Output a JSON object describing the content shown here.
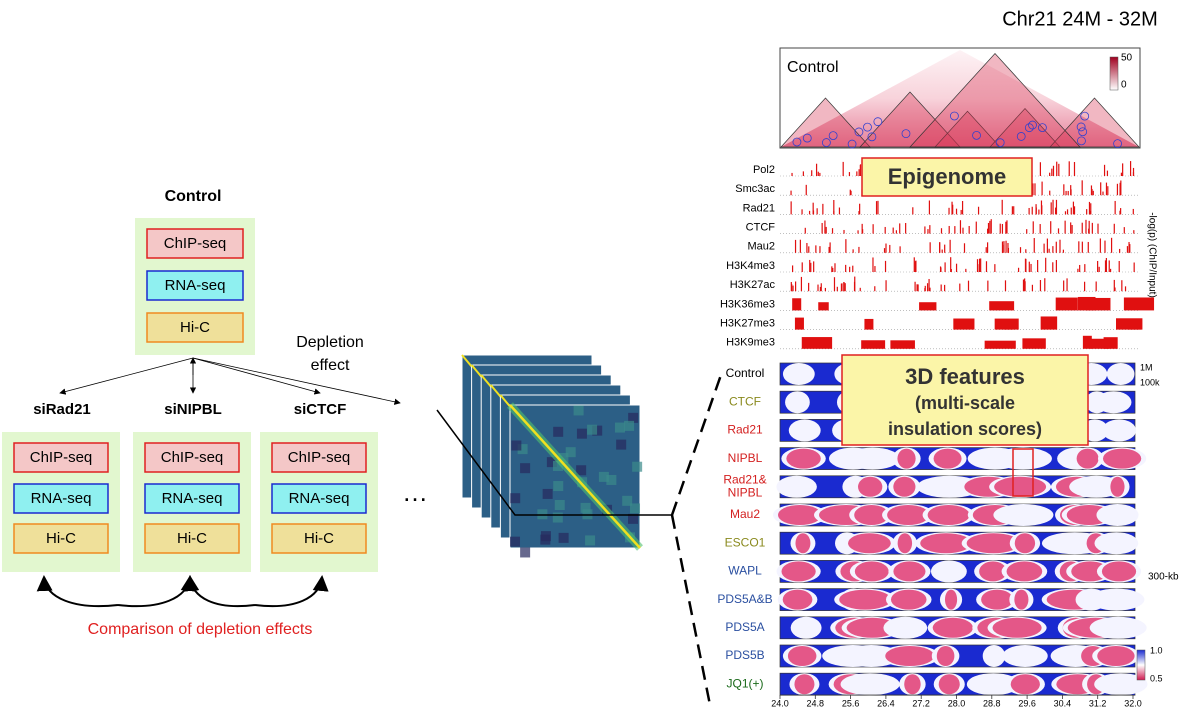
{
  "title": "Chr21 24M - 32M",
  "workflow": {
    "control": {
      "label": "Control",
      "assays": [
        "ChIP-seq",
        "RNA-seq",
        "Hi-C"
      ]
    },
    "depletion_label": [
      "Depletion",
      "effect"
    ],
    "conditions": [
      {
        "label": "siRad21",
        "assays": [
          "ChIP-seq",
          "RNA-seq",
          "Hi-C"
        ]
      },
      {
        "label": "siNIPBL",
        "assays": [
          "ChIP-seq",
          "RNA-seq",
          "Hi-C"
        ]
      },
      {
        "label": "siCTCF",
        "assays": [
          "ChIP-seq",
          "RNA-seq",
          "Hi-C"
        ]
      }
    ],
    "ellipsis": "…",
    "comparison": "Comparison of depletion effects"
  },
  "hic_panel": {
    "label": "Control",
    "colorbar": [
      "50",
      "0"
    ]
  },
  "epigenome": {
    "label": "Epigenome",
    "tracks": [
      "Pol2",
      "Smc3ac",
      "Rad21",
      "CTCF",
      "Mau2",
      "H3K4me3",
      "H3K27ac",
      "H3K36me3",
      "H3K27me3",
      "H3K9me3"
    ],
    "axis_label": "-log(p) (ChIP/Input)"
  },
  "features": {
    "label_lines": [
      "3D features",
      "(multi-scale",
      "insulation scores)"
    ],
    "rows": [
      {
        "lines": [
          "Control"
        ],
        "color": "#000000"
      },
      {
        "lines": [
          "CTCF"
        ],
        "color": "#8a8a1e"
      },
      {
        "lines": [
          "Rad21"
        ],
        "color": "#d42020"
      },
      {
        "lines": [
          "NIPBL"
        ],
        "color": "#d42020"
      },
      {
        "lines": [
          "Rad21&",
          "NIPBL"
        ],
        "color": "#d42020"
      },
      {
        "lines": [
          "Mau2"
        ],
        "color": "#d42020"
      },
      {
        "lines": [
          "ESCO1"
        ],
        "color": "#8a8a1e"
      },
      {
        "lines": [
          "WAPL"
        ],
        "color": "#2a4fa0"
      },
      {
        "lines": [
          "PDS5A&B"
        ],
        "color": "#2a4fa0"
      },
      {
        "lines": [
          "PDS5A"
        ],
        "color": "#2a4fa0"
      },
      {
        "lines": [
          "PDS5B"
        ],
        "color": "#2a4fa0"
      },
      {
        "lines": [
          "JQ1(+)"
        ],
        "color": "#1a6a1a"
      }
    ],
    "scale_labels": [
      "1M",
      "100k"
    ],
    "side_label": "300-kb",
    "colorbar": [
      "1.0",
      "0.5"
    ]
  },
  "x_axis": {
    "ticks": [
      "24.0",
      "24.8",
      "25.6",
      "26.4",
      "27.2",
      "28.0",
      "28.8",
      "29.6",
      "30.4",
      "31.2",
      "32.0"
    ]
  }
}
